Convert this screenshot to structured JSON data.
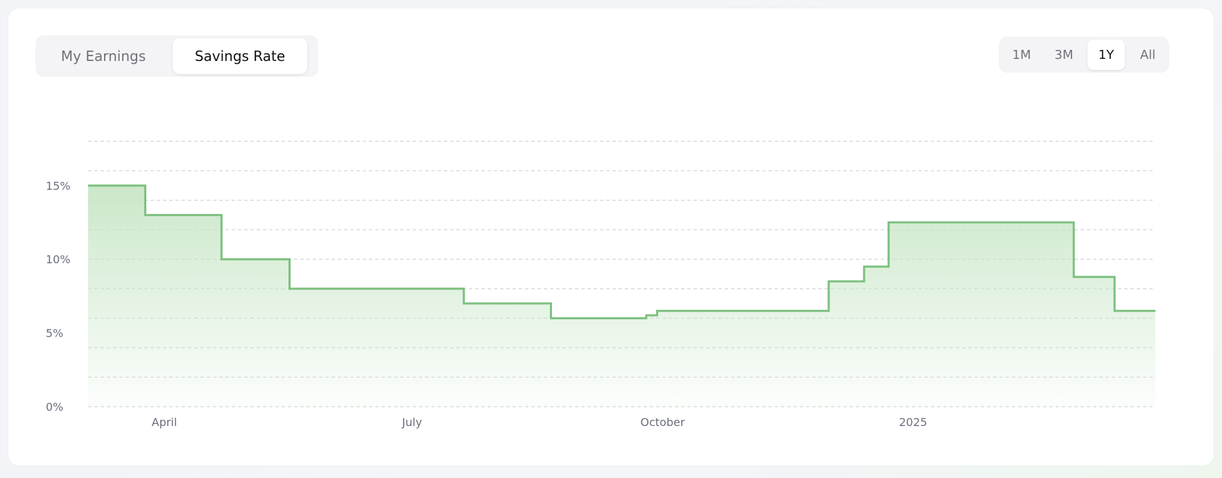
{
  "tabs": {
    "earnings": "My Earnings",
    "savings": "Savings Rate",
    "active": "savings"
  },
  "ranges": {
    "items": [
      "1M",
      "3M",
      "1Y",
      "All"
    ],
    "active": "1Y"
  },
  "colors": {
    "line": "#7cc07f",
    "fill_top": "#c8e6c6",
    "grid": "#d4d4d8",
    "axis_text": "#6b6f7d"
  },
  "chart_data": {
    "type": "area",
    "step": true,
    "x": [
      "2024-03-04",
      "2024-03-25",
      "2024-04-22",
      "2024-05-17",
      "2024-07-20",
      "2024-08-21",
      "2024-09-25",
      "2024-09-29",
      "2024-10-17",
      "2024-12-01",
      "2024-12-14",
      "2024-12-23",
      "2025-03-01",
      "2025-03-16",
      "2025-03-31"
    ],
    "y": [
      15.0,
      13.0,
      10.0,
      8.0,
      7.0,
      6.0,
      6.2,
      6.5,
      6.5,
      8.5,
      9.5,
      12.5,
      8.8,
      6.5,
      6.5
    ],
    "y_ticks": [
      {
        "value": 0,
        "label": "0%"
      },
      {
        "value": 5,
        "label": "5%"
      },
      {
        "value": 10,
        "label": "10%"
      },
      {
        "value": 15,
        "label": "15%"
      }
    ],
    "x_ticks": [
      {
        "value": "2024-04-01",
        "label": "April"
      },
      {
        "value": "2024-07-01",
        "label": "July"
      },
      {
        "value": "2024-10-01",
        "label": "October"
      },
      {
        "value": "2025-01-01",
        "label": "2025"
      }
    ],
    "ylim": [
      0,
      18
    ],
    "xlim": [
      "2024-03-04",
      "2025-03-31"
    ],
    "grid": true,
    "grid_step": 2,
    "title": "",
    "xlabel": "",
    "ylabel": ""
  }
}
